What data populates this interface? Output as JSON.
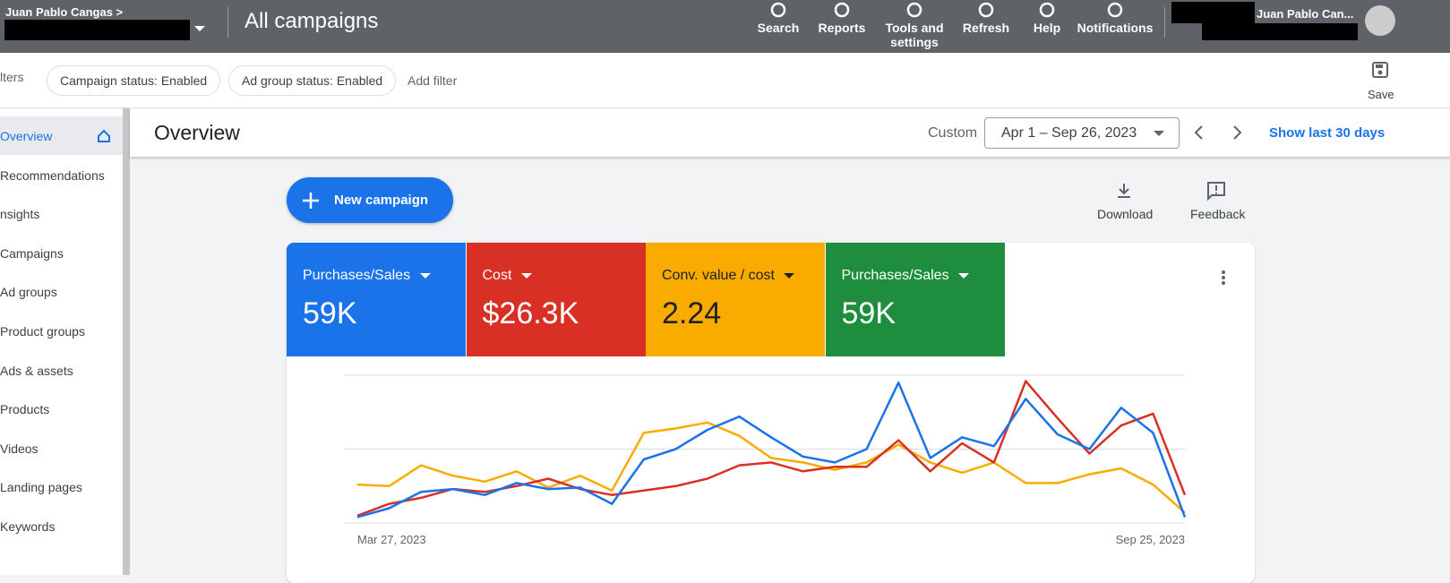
{
  "header": {
    "account_name": "Juan Pablo Cangas",
    "page_title": "All campaigns",
    "nav": [
      "Search",
      "Reports",
      "Tools and settings",
      "Refresh",
      "Help",
      "Notifications"
    ],
    "user": "Juan Pablo Can..."
  },
  "filters": {
    "prefix": "lters",
    "chips": [
      "Campaign status: Enabled",
      "Ad group status: Enabled"
    ],
    "add": "Add filter",
    "save": "Save"
  },
  "sidebar": {
    "items": [
      "Overview",
      "Recommendations",
      "nsights",
      "Campaigns",
      "Ad groups",
      "Product groups",
      "Ads & assets",
      "Products",
      "Videos",
      "Landing pages",
      "Keywords"
    ]
  },
  "overview": {
    "title": "Overview",
    "range_label": "Custom",
    "date_range": "Apr 1 – Sep 26, 2023",
    "show_last": "Show last 30 days"
  },
  "actions": {
    "new_campaign": "New campaign",
    "download": "Download",
    "feedback": "Feedback"
  },
  "scorecards": [
    {
      "name": "Purchases/Sales",
      "value": "59K",
      "color": "#1a73e8",
      "text_color": "#ffffff"
    },
    {
      "name": "Cost",
      "value": "$26.3K",
      "color": "#d93025",
      "text_color": "#ffffff"
    },
    {
      "name": "Conv. value / cost",
      "value": "2.24",
      "color": "#f9ab00",
      "text_color": "#202124"
    },
    {
      "name": "Purchases/Sales",
      "value": "59K",
      "color": "#1e8e3e",
      "text_color": "#ffffff"
    }
  ],
  "chart_data": {
    "type": "line",
    "categories": [
      "Mar 27, 2023",
      null,
      null,
      null,
      null,
      null,
      null,
      null,
      null,
      null,
      null,
      null,
      null,
      null,
      null,
      null,
      null,
      null,
      null,
      null,
      null,
      null,
      null,
      null,
      null,
      null,
      "Sep 25, 2023"
    ],
    "series": [
      {
        "color": "#1a73e8",
        "values": [
          4,
          10,
          21,
          23,
          19,
          27,
          23,
          24,
          13,
          43,
          50,
          63,
          72,
          58,
          45,
          41,
          50,
          95,
          44,
          58,
          52,
          84,
          60,
          50,
          78,
          61,
          4
        ]
      },
      {
        "color": "#d93025",
        "values": [
          5,
          13,
          17,
          23,
          21,
          25,
          30,
          23,
          19,
          22,
          25,
          30,
          39,
          41,
          35,
          38,
          38,
          56,
          35,
          54,
          41,
          96,
          71,
          47,
          66,
          74,
          19
        ]
      },
      {
        "color": "#f9ab00",
        "values": [
          26,
          25,
          39,
          32,
          28,
          35,
          24,
          32,
          22,
          61,
          64,
          68,
          59,
          44,
          41,
          36,
          41,
          53,
          41,
          34,
          41,
          27,
          27,
          33,
          37,
          26,
          7
        ]
      }
    ],
    "ylim": [
      0,
      100
    ],
    "gridlines": [
      0,
      50,
      100
    ]
  }
}
